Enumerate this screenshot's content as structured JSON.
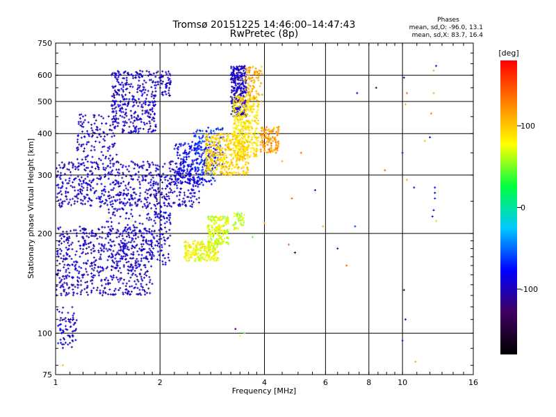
{
  "header": {
    "title_line1": "Tromsø 20151225 14:46:00–14:47:43",
    "title_line2": "RwPretec (8p)"
  },
  "stats": {
    "heading": "Phases",
    "line_o": "mean, sd,O: -96.0, 13.1",
    "line_x": "mean, sd,X: 83.7, 16.4"
  },
  "colorbar": {
    "unit_label": "[deg]",
    "tick_labels": [
      "100",
      "0",
      "-100"
    ],
    "tick_values": [
      100,
      0,
      -100
    ],
    "range": [
      -180,
      180
    ],
    "colors": [
      "#000000",
      "#400060",
      "#0000ff",
      "#00c8ff",
      "#00ff40",
      "#ffff00",
      "#ff8000",
      "#ff0000"
    ]
  },
  "chart_data": {
    "type": "scatter",
    "title": "Tromsø 20151225 14:46:00–14:47:43",
    "subtitle": "RwPretec (8p)",
    "xlabel": "Frequency [MHz]",
    "ylabel": "Stationary phase Virtual Height [km]",
    "xscale": "log2",
    "yscale": "log",
    "xlim": [
      1,
      16
    ],
    "ylim": [
      75,
      750
    ],
    "x_ticks": [
      1,
      2,
      4,
      6,
      8,
      10,
      16
    ],
    "x_tick_labels": [
      "1",
      "2",
      "4",
      "6",
      "8",
      "10",
      "16"
    ],
    "y_ticks": [
      75,
      100,
      200,
      300,
      400,
      500,
      600,
      750
    ],
    "y_tick_labels": [
      "75",
      "100",
      "200",
      "300",
      "400",
      "500",
      "600",
      "750"
    ],
    "grid": true,
    "color_by": "phase_deg",
    "clusters": [
      {
        "x": [
          1.0,
          1.15
        ],
        "y": [
          90,
          120
        ],
        "phase": -95,
        "n": 70
      },
      {
        "x": [
          1.0,
          1.9
        ],
        "y": [
          130,
          210
        ],
        "phase": -97,
        "n": 650
      },
      {
        "x": [
          1.4,
          2.05
        ],
        "y": [
          165,
          240
        ],
        "phase": -93,
        "n": 120
      },
      {
        "x": [
          1.9,
          2.15
        ],
        "y": [
          160,
          235
        ],
        "phase": -90,
        "n": 70
      },
      {
        "x": [
          1.0,
          2.6
        ],
        "y": [
          240,
          330
        ],
        "phase": -96,
        "n": 650
      },
      {
        "x": [
          1.15,
          1.5
        ],
        "y": [
          330,
          460
        ],
        "phase": -97,
        "n": 120
      },
      {
        "x": [
          1.45,
          1.95
        ],
        "y": [
          400,
          620
        ],
        "phase": -95,
        "n": 350
      },
      {
        "x": [
          1.95,
          2.15
        ],
        "y": [
          520,
          620
        ],
        "phase": -94,
        "n": 50
      },
      {
        "x": [
          2.2,
          2.9
        ],
        "y": [
          280,
          380
        ],
        "phase": -82,
        "n": 220
      },
      {
        "x": [
          2.5,
          3.05
        ],
        "y": [
          300,
          420
        ],
        "phase": -65,
        "n": 130
      },
      {
        "x": [
          3.2,
          3.55
        ],
        "y": [
          450,
          640
        ],
        "phase": -98,
        "n": 280
      },
      {
        "x": [
          2.7,
          3.6
        ],
        "y": [
          300,
          400
        ],
        "phase": 95,
        "n": 420
      },
      {
        "x": [
          3.25,
          3.85
        ],
        "y": [
          340,
          520
        ],
        "phase": 88,
        "n": 360
      },
      {
        "x": [
          3.5,
          3.95
        ],
        "y": [
          500,
          640
        ],
        "phase": 112,
        "n": 90
      },
      {
        "x": [
          3.9,
          4.4
        ],
        "y": [
          350,
          420
        ],
        "phase": 118,
        "n": 120
      },
      {
        "x": [
          2.35,
          2.95
        ],
        "y": [
          165,
          190
        ],
        "phase": 78,
        "n": 220
      },
      {
        "x": [
          2.75,
          3.15
        ],
        "y": [
          185,
          225
        ],
        "phase": 70,
        "n": 180
      },
      {
        "x": [
          3.25,
          3.5
        ],
        "y": [
          205,
          230
        ],
        "phase": 65,
        "n": 40
      }
    ],
    "points": [
      {
        "x": 1.05,
        "y": 80,
        "phase": 105
      },
      {
        "x": 3.4,
        "y": 98,
        "phase": 80
      },
      {
        "x": 3.5,
        "y": 100,
        "phase": 40
      },
      {
        "x": 3.3,
        "y": 103,
        "phase": -150
      },
      {
        "x": 3.7,
        "y": 195,
        "phase": 40
      },
      {
        "x": 4.0,
        "y": 215,
        "phase": 120
      },
      {
        "x": 4.7,
        "y": 185,
        "phase": 140
      },
      {
        "x": 4.9,
        "y": 175,
        "phase": -160
      },
      {
        "x": 5.9,
        "y": 210,
        "phase": 110
      },
      {
        "x": 6.5,
        "y": 180,
        "phase": -100
      },
      {
        "x": 6.9,
        "y": 160,
        "phase": 140
      },
      {
        "x": 7.3,
        "y": 210,
        "phase": -60
      },
      {
        "x": 7.4,
        "y": 530,
        "phase": -90
      },
      {
        "x": 8.4,
        "y": 550,
        "phase": -130
      },
      {
        "x": 8.9,
        "y": 310,
        "phase": 140
      },
      {
        "x": 5.6,
        "y": 270,
        "phase": -100
      },
      {
        "x": 4.5,
        "y": 330,
        "phase": 110
      },
      {
        "x": 5.1,
        "y": 350,
        "phase": 140
      },
      {
        "x": 4.8,
        "y": 255,
        "phase": 140
      },
      {
        "x": 10.1,
        "y": 590,
        "phase": -90
      },
      {
        "x": 10.2,
        "y": 490,
        "phase": 110
      },
      {
        "x": 10.3,
        "y": 530,
        "phase": 140
      },
      {
        "x": 10.0,
        "y": 350,
        "phase": -100
      },
      {
        "x": 10.3,
        "y": 290,
        "phase": 110
      },
      {
        "x": 10.1,
        "y": 135,
        "phase": -140
      },
      {
        "x": 10.2,
        "y": 110,
        "phase": -90
      },
      {
        "x": 10.0,
        "y": 95,
        "phase": -80
      },
      {
        "x": 10.9,
        "y": 82,
        "phase": 110
      },
      {
        "x": 10.8,
        "y": 275,
        "phase": -100
      },
      {
        "x": 11.6,
        "y": 380,
        "phase": 100
      },
      {
        "x": 12.1,
        "y": 460,
        "phase": 130
      },
      {
        "x": 12.3,
        "y": 530,
        "phase": 110
      },
      {
        "x": 12.5,
        "y": 640,
        "phase": -100
      },
      {
        "x": 12.3,
        "y": 620,
        "phase": 110
      },
      {
        "x": 12.0,
        "y": 390,
        "phase": -90
      },
      {
        "x": 12.4,
        "y": 275,
        "phase": -80
      },
      {
        "x": 12.4,
        "y": 265,
        "phase": -90
      },
      {
        "x": 12.4,
        "y": 255,
        "phase": -70
      },
      {
        "x": 12.3,
        "y": 235,
        "phase": -95
      },
      {
        "x": 12.2,
        "y": 225,
        "phase": -80
      },
      {
        "x": 12.5,
        "y": 218,
        "phase": 60
      }
    ]
  }
}
